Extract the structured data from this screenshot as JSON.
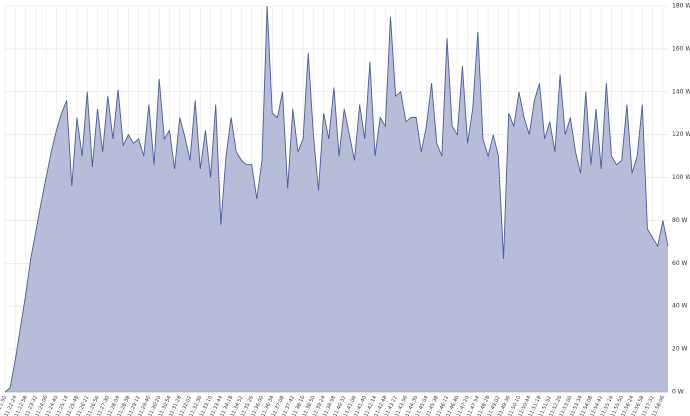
{
  "chart_data": {
    "type": "area",
    "categories": [
      "11:21:50",
      null,
      "11:22:24",
      null,
      "11:22:58",
      null,
      "11:23:32",
      null,
      "11:24:06",
      null,
      "11:24:40",
      null,
      "11:25:14",
      null,
      "11:25:48",
      null,
      "11:26:22",
      null,
      "11:26:56",
      null,
      "11:27:30",
      null,
      "11:28:04",
      null,
      "11:28:38",
      null,
      "11:29:12",
      null,
      "11:29:46",
      null,
      "11:30:20",
      null,
      "11:30:54",
      null,
      "11:31:28",
      null,
      "11:32:02",
      null,
      "11:32:36",
      null,
      "11:33:10",
      null,
      "11:33:44",
      null,
      "11:34:18",
      null,
      "11:34:52",
      null,
      "11:35:26",
      null,
      "11:36:00",
      null,
      "11:36:34",
      null,
      "11:37:08",
      null,
      "11:37:42",
      null,
      "11:38:16",
      null,
      "11:38:50",
      null,
      "11:39:24",
      null,
      "11:39:58",
      null,
      "11:40:32",
      null,
      "11:41:06",
      null,
      "11:41:40",
      null,
      "11:42:14",
      null,
      "11:42:48",
      null,
      "11:43:22",
      null,
      "11:43:56",
      null,
      "11:44:30",
      null,
      "11:45:04",
      null,
      "11:45:38",
      null,
      "11:46:12",
      null,
      "11:46:46",
      null,
      "11:47:20",
      null,
      "11:47:54",
      null,
      "11:48:28",
      null,
      "11:49:02",
      null,
      "11:49:36",
      null,
      "11:50:10",
      null,
      "11:50:44",
      null,
      "11:51:18",
      null,
      "11:51:52",
      null,
      "11:52:26",
      null,
      "11:53:00",
      null,
      "11:53:34",
      null,
      "11:54:08",
      null,
      "11:54:42",
      null,
      "11:55:16",
      null,
      "11:55:50",
      null,
      "11:56:24",
      null,
      "11:56:58",
      null,
      "11:57:32",
      null,
      "11:58:06",
      null
    ],
    "values": [
      0,
      2,
      15,
      30,
      45,
      62,
      75,
      88,
      100,
      112,
      122,
      130,
      136,
      96,
      128,
      110,
      140,
      105,
      132,
      112,
      138,
      118,
      141,
      115,
      120,
      116,
      118,
      110,
      134,
      106,
      146,
      118,
      122,
      104,
      128,
      119,
      108,
      136,
      104,
      122,
      100,
      134,
      78,
      110,
      128,
      112,
      108,
      106,
      106,
      90,
      108,
      180,
      130,
      128,
      140,
      95,
      132,
      112,
      118,
      158,
      120,
      94,
      130,
      118,
      142,
      110,
      132,
      120,
      108,
      134,
      118,
      154,
      110,
      128,
      124,
      175,
      138,
      140,
      126,
      128,
      128,
      112,
      124,
      144,
      116,
      110,
      165,
      124,
      120,
      152,
      116,
      132,
      168,
      118,
      110,
      120,
      110,
      62,
      130,
      124,
      140,
      128,
      120,
      136,
      144,
      118,
      126,
      112,
      148,
      120,
      128,
      112,
      102,
      140,
      106,
      132,
      104,
      144,
      110,
      106,
      108,
      134,
      102,
      110,
      134,
      76,
      72,
      68,
      80,
      68
    ],
    "color": "#b3b9d6",
    "line_color": "#4b5b9c",
    "ylim": [
      0,
      180
    ],
    "yticks": [
      {
        "value": 0,
        "label": "0 W"
      },
      {
        "value": 20,
        "label": "20 W"
      },
      {
        "value": 40,
        "label": "40 W"
      },
      {
        "value": 60,
        "label": "60 W"
      },
      {
        "value": 80,
        "label": "80 W"
      },
      {
        "value": 100,
        "label": "100 W"
      },
      {
        "value": 120,
        "label": "120 W"
      },
      {
        "value": 140,
        "label": "140 W"
      },
      {
        "value": 160,
        "label": "160 W"
      },
      {
        "value": 180,
        "label": "180 W"
      }
    ],
    "grid": true
  }
}
